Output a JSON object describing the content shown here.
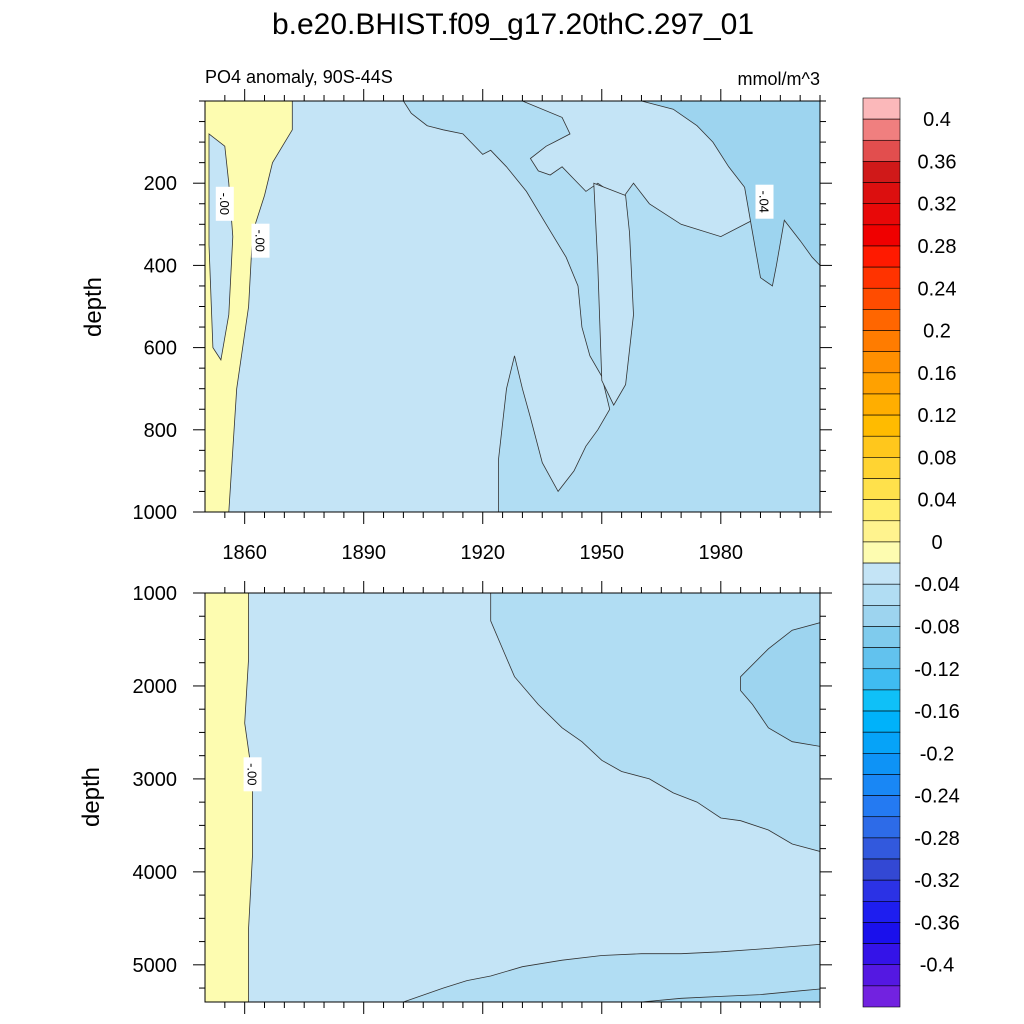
{
  "title": "b.e20.BHIST.f09_g17.20thC.297_01",
  "colors": {
    "positive": "#fdfcb0",
    "near_zero": "#c4e4f6",
    "neg_1": "#b1ddf3",
    "neg_2": "#9dd4ef"
  },
  "colorbar": {
    "colors": [
      "#fbb8ba",
      "#f07f7f",
      "#e24e4e",
      "#d01919",
      "#dc0f0f",
      "#e80808",
      "#f00000",
      "#ff1a00",
      "#ff3300",
      "#ff4c00",
      "#ff6600",
      "#ff7c00",
      "#ff8f00",
      "#ffa100",
      "#ffae00",
      "#ffbb00",
      "#ffc71c",
      "#ffd432",
      "#ffe14b",
      "#ffee6e",
      "#fff38e",
      "#fdfcb0",
      "#c4e4f6",
      "#b1ddf3",
      "#9dd4ef",
      "#7fcbed",
      "#62c2ee",
      "#3fbcf2",
      "#0fc0f8",
      "#00b2fa",
      "#06a3f8",
      "#0e93f6",
      "#1987f5",
      "#247af2",
      "#2d6be8",
      "#3259dd",
      "#3348d4",
      "#2b32e5",
      "#1e1ef0",
      "#1a10ec",
      "#3413e8",
      "#5418e2",
      "#7222e0"
    ],
    "labels": [
      "0.4",
      "0.36",
      "0.32",
      "0.28",
      "0.24",
      "0.2",
      "0.16",
      "0.12",
      "0.08",
      "0.04",
      "0",
      "-0.04",
      "-0.08",
      "-0.12",
      "-0.16",
      "-0.2",
      "-0.24",
      "-0.28",
      "-0.32",
      "-0.36",
      "-0.4"
    ]
  },
  "chart_data": [
    {
      "type": "heatmap",
      "title": "PO4 anomaly, 90S-44S",
      "units": "mmol/m^3",
      "xlabel": "",
      "ylabel": "depth",
      "xlim": [
        1850,
        2005
      ],
      "ylim": [
        1000,
        0
      ],
      "xticks": [
        1860,
        1890,
        1920,
        1950,
        1980
      ],
      "yticks": [
        200,
        400,
        600,
        800,
        1000
      ],
      "contour_labels": [
        {
          "text": "-.00",
          "x": 1855,
          "y": 250
        },
        {
          "text": "-.00",
          "x": 1864,
          "y": 340
        },
        {
          "text": "-.04",
          "x": 1991,
          "y": 245
        }
      ],
      "regions": [
        {
          "level": "positive",
          "x": [
            1850,
            1872,
            1872,
            1867,
            1865,
            1862,
            1861,
            1858,
            1856,
            1850
          ],
          "y": [
            0,
            0,
            70,
            150,
            230,
            320,
            500,
            700,
            1000,
            1000
          ]
        },
        {
          "level": "near_zero",
          "x": [
            1851,
            1855,
            1856,
            1857,
            1856,
            1854,
            1852,
            1851
          ],
          "y": [
            80,
            110,
            200,
            330,
            520,
            630,
            600,
            350
          ]
        },
        {
          "level": "neg_1",
          "x": [
            1900,
            1930,
            1940,
            1942,
            1938,
            1936,
            1932,
            1934,
            1937,
            1940,
            1943,
            1946,
            1949,
            1955,
            1958,
            1962,
            1970,
            1980,
            1990,
            2005,
            2005,
            1924,
            1924,
            1926,
            1928,
            1930,
            1932,
            1935,
            1939,
            1943,
            1946,
            1949,
            1952,
            1950,
            1947,
            1945,
            1944,
            1941,
            1936,
            1931,
            1926,
            1922,
            1920,
            1915,
            1910,
            1906,
            1902
          ],
          "y": [
            0,
            0,
            40,
            80,
            100,
            110,
            140,
            170,
            180,
            160,
            190,
            220,
            200,
            240,
            200,
            250,
            300,
            330,
            280,
            300,
            1000,
            1000,
            870,
            700,
            620,
            700,
            770,
            880,
            950,
            900,
            840,
            800,
            750,
            670,
            620,
            550,
            450,
            380,
            300,
            220,
            160,
            120,
            130,
            80,
            70,
            60,
            30
          ]
        },
        {
          "level": "near_zero",
          "x": [
            1948,
            1952,
            1956,
            1957,
            1958,
            1956,
            1953,
            1950,
            1949
          ],
          "y": [
            200,
            215,
            230,
            320,
            520,
            690,
            740,
            680,
            400
          ]
        },
        {
          "level": "neg_2",
          "x": [
            1960,
            1985,
            2005,
            2005,
            2003,
            2000,
            1996,
            1994,
            1993,
            1990,
            1988,
            1986,
            1982,
            1978,
            1974,
            1968,
            1964
          ],
          "y": [
            0,
            0,
            0,
            400,
            380,
            340,
            290,
            400,
            450,
            430,
            320,
            210,
            160,
            100,
            60,
            20,
            10
          ]
        }
      ]
    },
    {
      "type": "heatmap",
      "title": "",
      "units": "",
      "xlabel": "",
      "ylabel": "depth",
      "xlim": [
        1850,
        2005
      ],
      "ylim": [
        5400,
        1000
      ],
      "xticks": [
        1860,
        1890,
        1920,
        1950,
        1980
      ],
      "yticks": [
        1000,
        2000,
        3000,
        4000,
        5000
      ],
      "contour_labels": [
        {
          "text": "-.00",
          "x": 1862,
          "y": 2950
        }
      ],
      "regions": [
        {
          "level": "positive",
          "x": [
            1850,
            1861,
            1861,
            1860,
            1862,
            1862,
            1861,
            1861,
            1850
          ],
          "y": [
            1000,
            1000,
            1700,
            2400,
            3000,
            3800,
            4600,
            5400,
            5400
          ]
        },
        {
          "level": "neg_1",
          "x": [
            1922,
            2005,
            2005,
            1998,
            1992,
            1985,
            1980,
            1974,
            1968,
            1962,
            1955,
            1950,
            1945,
            1940,
            1934,
            1928,
            1924,
            1922
          ],
          "y": [
            1000,
            1000,
            3780,
            3700,
            3550,
            3450,
            3420,
            3250,
            3150,
            3000,
            2920,
            2800,
            2600,
            2450,
            2200,
            1900,
            1500,
            1300
          ]
        },
        {
          "level": "neg_2",
          "x": [
            1985,
            1992,
            1998,
            2005,
            2005,
            1998,
            1992,
            1988,
            1985
          ],
          "y": [
            1900,
            1600,
            1400,
            1320,
            2650,
            2600,
            2450,
            2200,
            2050
          ]
        },
        {
          "level": "neg_1",
          "x": [
            1900,
            1910,
            1916,
            1922,
            1930,
            1940,
            1950,
            1960,
            1970,
            1980,
            1990,
            2005,
            2005,
            1900
          ],
          "y": [
            5400,
            5250,
            5170,
            5120,
            5020,
            4950,
            4900,
            4880,
            4880,
            4860,
            4830,
            4780,
            5400,
            5400
          ]
        },
        {
          "level": "neg_2",
          "x": [
            1960,
            1970,
            1980,
            1990,
            2000,
            2005,
            2005,
            1960
          ],
          "y": [
            5400,
            5360,
            5340,
            5320,
            5280,
            5260,
            5400,
            5400
          ]
        }
      ]
    }
  ]
}
